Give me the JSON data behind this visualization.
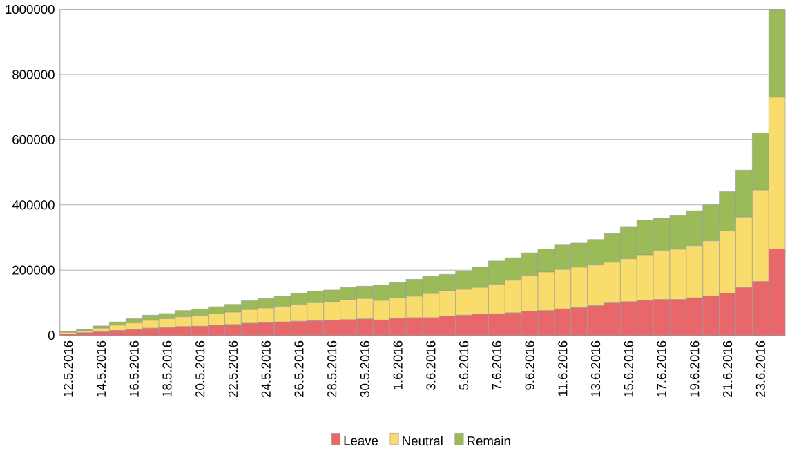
{
  "chart_data": {
    "type": "bar",
    "stacked": true,
    "categories": [
      "12.5.2016",
      null,
      "14.5.2016",
      null,
      "16.5.2016",
      null,
      "18.5.2016",
      null,
      "20.5.2016",
      null,
      "22.5.2016",
      null,
      "24.5.2016",
      null,
      "26.5.2016",
      null,
      "28.5.2016",
      null,
      "30.5.2016",
      null,
      "1.6.2016",
      null,
      "3.6.2016",
      null,
      "5.6.2016",
      null,
      "7.6.2016",
      null,
      "9.6.2016",
      null,
      "11.6.2016",
      null,
      "13.6.2016",
      null,
      "15.6.2016",
      null,
      "17.6.2016",
      null,
      "19.6.2016",
      null,
      "21.6.2016",
      null,
      "23.6.2016",
      null
    ],
    "series": [
      {
        "name": "Leave",
        "color": "#e8676b",
        "values": [
          4000,
          8000,
          11000,
          15000,
          18000,
          22000,
          24000,
          27000,
          28000,
          31000,
          33000,
          37000,
          39000,
          41000,
          43000,
          45000,
          46000,
          48000,
          50000,
          47000,
          52000,
          54000,
          54000,
          59000,
          62000,
          65000,
          66000,
          69000,
          74000,
          76000,
          81000,
          85000,
          91000,
          99000,
          103000,
          107000,
          110000,
          110000,
          115000,
          121000,
          129000,
          147000,
          165000,
          265000
        ]
      },
      {
        "name": "Neutral",
        "color": "#f8dc6c",
        "values": [
          5000,
          6000,
          11000,
          16000,
          20000,
          24000,
          27000,
          30000,
          33000,
          35000,
          38000,
          42000,
          45000,
          48000,
          52000,
          55000,
          57000,
          61000,
          63000,
          60000,
          63000,
          66000,
          74000,
          78000,
          79000,
          82000,
          91000,
          100000,
          110000,
          118000,
          121000,
          124000,
          125000,
          125000,
          132000,
          140000,
          150000,
          154000,
          160000,
          169000,
          191000,
          216000,
          281000,
          465000
        ]
      },
      {
        "name": "Remain",
        "color": "#9bbb59",
        "values": [
          3000,
          4000,
          7000,
          10000,
          13000,
          16000,
          16000,
          19000,
          20000,
          22000,
          24000,
          27000,
          29000,
          31000,
          33000,
          35000,
          36000,
          38000,
          38000,
          47000,
          47000,
          52000,
          53000,
          50000,
          56000,
          62000,
          71000,
          69000,
          69000,
          71000,
          75000,
          74000,
          78000,
          88000,
          99000,
          106000,
          100000,
          103000,
          107000,
          110000,
          121000,
          144000,
          175000,
          270000
        ]
      }
    ],
    "ylim": [
      0,
      1000000
    ],
    "yticks": [
      0,
      200000,
      400000,
      600000,
      800000,
      1000000
    ],
    "grid": "y",
    "legend": "bottom"
  }
}
